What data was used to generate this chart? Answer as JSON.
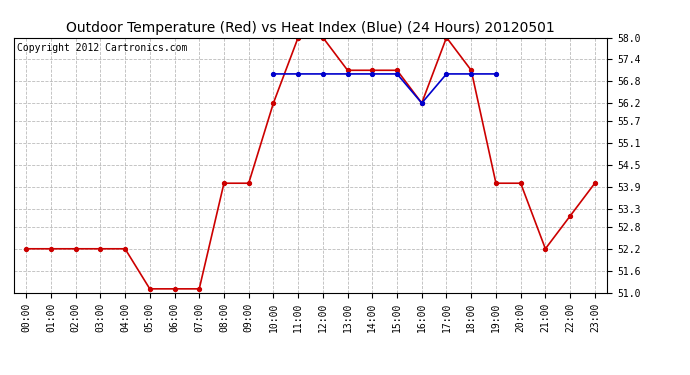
{
  "title": "Outdoor Temperature (Red) vs Heat Index (Blue) (24 Hours) 20120501",
  "copyright_text": "Copyright 2012 Cartronics.com",
  "temp_hours": [
    0,
    1,
    2,
    3,
    4,
    5,
    6,
    7,
    8,
    9,
    10,
    11,
    12,
    13,
    14,
    15,
    16,
    17,
    18,
    19,
    20,
    21,
    22,
    23
  ],
  "temp_values": [
    52.2,
    52.2,
    52.2,
    52.2,
    52.2,
    51.1,
    51.1,
    51.1,
    54.0,
    54.0,
    56.2,
    58.0,
    58.0,
    57.1,
    57.1,
    57.1,
    56.2,
    58.0,
    57.1,
    54.0,
    54.0,
    52.2,
    53.1,
    54.0
  ],
  "heat_hours": [
    10,
    11,
    12,
    13,
    14,
    15,
    16,
    17,
    18,
    19
  ],
  "heat_values": [
    57.0,
    57.0,
    57.0,
    57.0,
    57.0,
    57.0,
    56.2,
    57.0,
    57.0,
    57.0
  ],
  "temp_color": "#cc0000",
  "heat_color": "#0000cc",
  "marker": "o",
  "marker_size": 3,
  "ylim": [
    51.0,
    58.0
  ],
  "yticks": [
    51.0,
    51.6,
    52.2,
    52.8,
    53.3,
    53.9,
    54.5,
    55.1,
    55.7,
    56.2,
    56.8,
    57.4,
    58.0
  ],
  "background_color": "#ffffff",
  "grid_color": "#aaaaaa",
  "grid_style": "--",
  "title_fontsize": 10,
  "copyright_fontsize": 7,
  "tick_fontsize": 7
}
